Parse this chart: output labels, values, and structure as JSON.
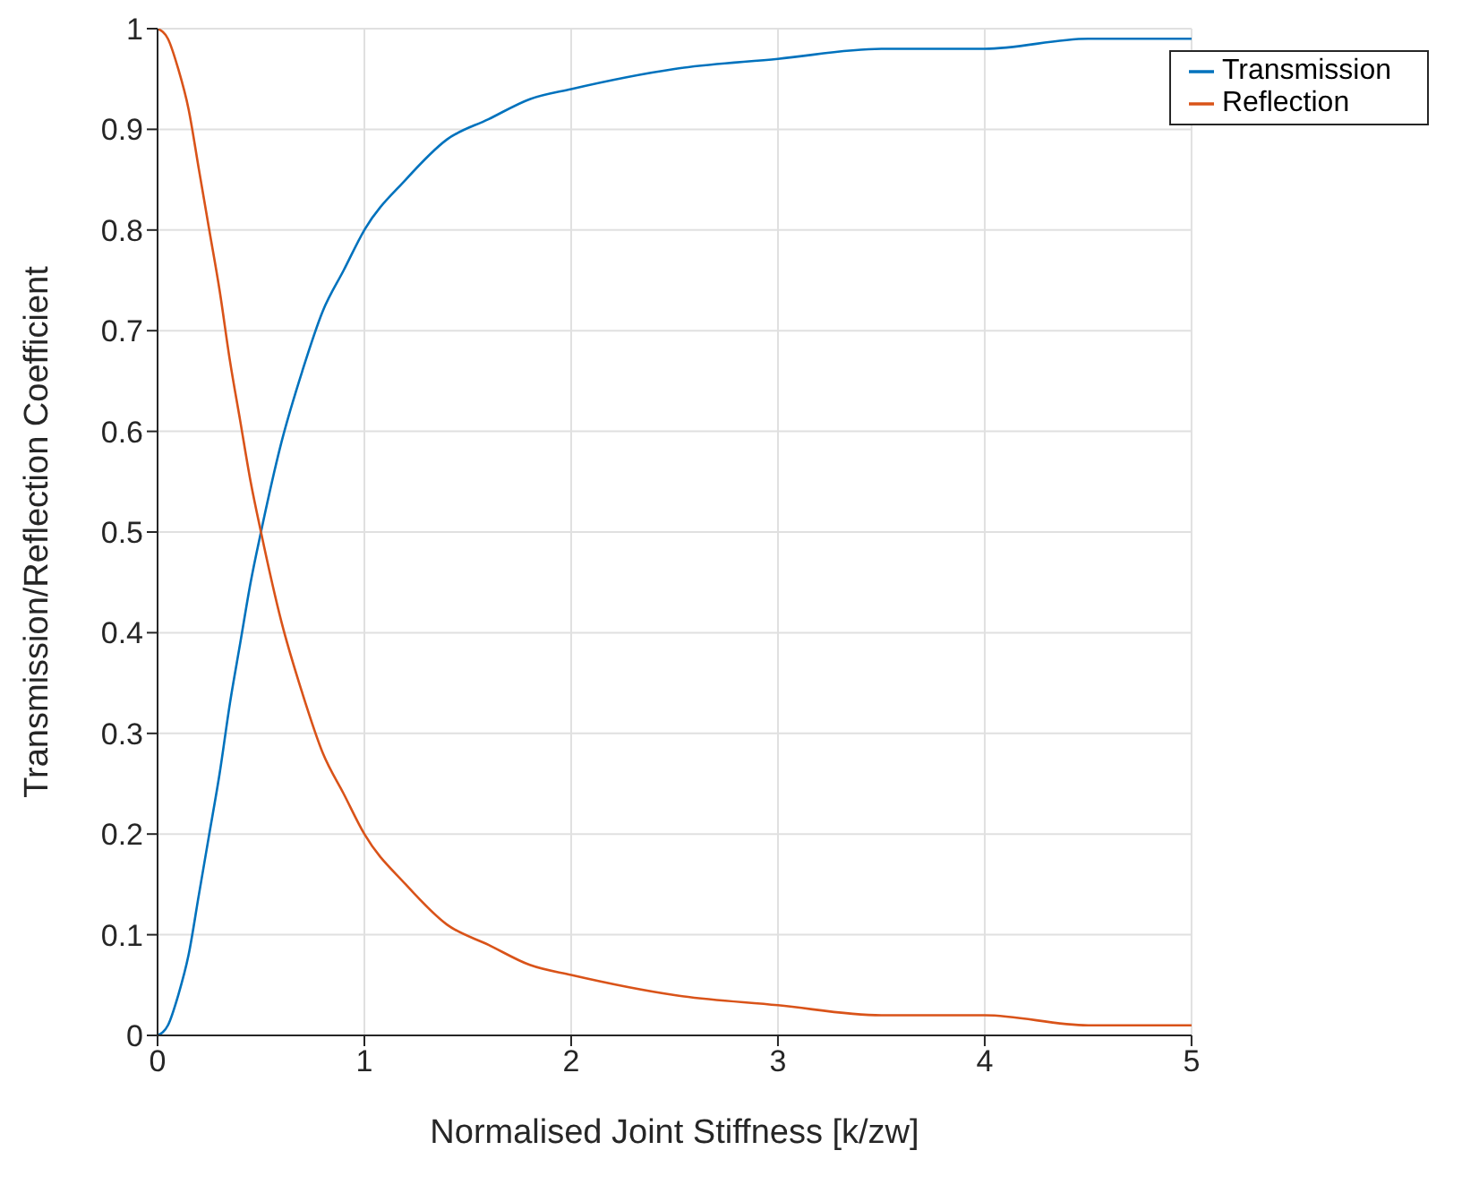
{
  "chart_data": {
    "type": "line",
    "xlabel": "Normalised Joint Stiffness [k/zw]",
    "ylabel": "Transmission/Reflection Coefficient",
    "x": [
      0,
      0.05,
      0.1,
      0.15,
      0.2,
      0.25,
      0.3,
      0.35,
      0.4,
      0.45,
      0.5,
      0.6,
      0.7,
      0.8,
      0.9,
      1,
      1.2,
      1.4,
      1.6,
      1.8,
      2,
      2.5,
      3,
      3.5,
      4,
      4.5,
      5
    ],
    "series": [
      {
        "name": "Transmission",
        "color": "#0072bd",
        "values": [
          0,
          0.01,
          0.04,
          0.08,
          0.14,
          0.2,
          0.26,
          0.33,
          0.39,
          0.45,
          0.5,
          0.59,
          0.66,
          0.72,
          0.76,
          0.8,
          0.85,
          0.89,
          0.91,
          0.93,
          0.94,
          0.96,
          0.97,
          0.98,
          0.98,
          0.99,
          0.99
        ]
      },
      {
        "name": "Reflection",
        "color": "#d95319",
        "values": [
          1,
          0.99,
          0.96,
          0.92,
          0.86,
          0.8,
          0.74,
          0.67,
          0.61,
          0.55,
          0.5,
          0.41,
          0.34,
          0.28,
          0.24,
          0.2,
          0.15,
          0.11,
          0.09,
          0.07,
          0.06,
          0.04,
          0.03,
          0.02,
          0.02,
          0.01,
          0.01
        ]
      }
    ],
    "xlim": [
      0,
      5
    ],
    "xticks": [
      0,
      1,
      2,
      3,
      4,
      5
    ],
    "ylim": [
      0,
      1
    ],
    "yticks": [
      0,
      0.1,
      0.2,
      0.3,
      0.4,
      0.5,
      0.6,
      0.7,
      0.8,
      0.9,
      1
    ],
    "grid": true,
    "legend": "top right",
    "marker": "none",
    "line_style": "solid"
  }
}
